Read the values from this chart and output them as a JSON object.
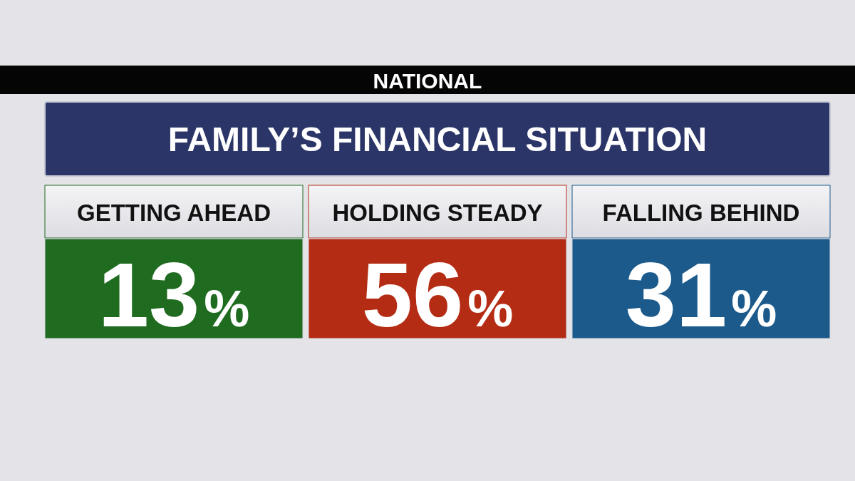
{
  "chart_data": {
    "type": "other",
    "title": "FAMILY’S FINANCIAL SITUATION",
    "subtitle": "NATIONAL",
    "categories": [
      "GETTING AHEAD",
      "HOLDING STEADY",
      "FALLING BEHIND"
    ],
    "values": [
      13,
      56,
      31
    ],
    "value_labels": [
      "13%",
      "56%",
      "31%"
    ],
    "colors": [
      "#1f6b20",
      "#b42c14",
      "#1b5a8b"
    ]
  }
}
